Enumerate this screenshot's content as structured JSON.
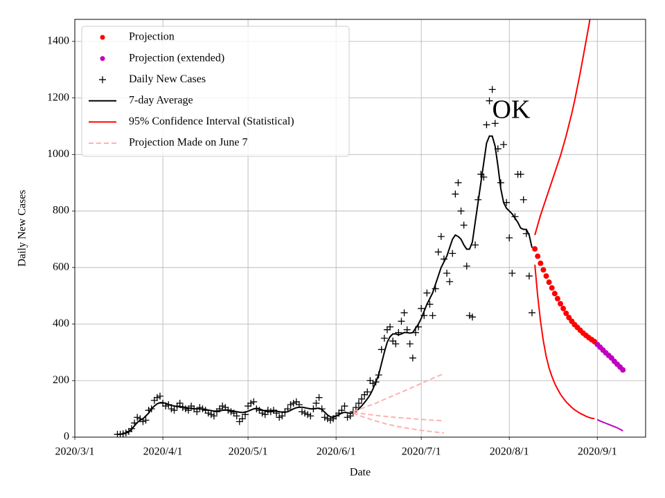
{
  "chart_data": {
    "type": "line",
    "ylabel": "Daily New Cases",
    "xlabel": "Date",
    "annotation": "OK",
    "grid": true,
    "legend": "upper left",
    "xlim": [
      "2020/3/1",
      "2020/9/18"
    ],
    "ylim": [
      0,
      1478
    ],
    "xticks": [
      "2020/3/1",
      "2020/4/1",
      "2020/5/1",
      "2020/6/1",
      "2020/7/1",
      "2020/8/1",
      "2020/9/1"
    ],
    "yticks": [
      0,
      200,
      400,
      600,
      800,
      1000,
      1200,
      1400
    ],
    "x": [
      "2020/3/16",
      "2020/3/17",
      "2020/3/18",
      "2020/3/19",
      "2020/3/20",
      "2020/3/21",
      "2020/3/22",
      "2020/3/23",
      "2020/3/24",
      "2020/3/25",
      "2020/3/26",
      "2020/3/27",
      "2020/3/28",
      "2020/3/29",
      "2020/3/30",
      "2020/3/31",
      "2020/4/1",
      "2020/4/2",
      "2020/4/3",
      "2020/4/4",
      "2020/4/5",
      "2020/4/6",
      "2020/4/7",
      "2020/4/8",
      "2020/4/9",
      "2020/4/10",
      "2020/4/11",
      "2020/4/12",
      "2020/4/13",
      "2020/4/14",
      "2020/4/15",
      "2020/4/16",
      "2020/4/17",
      "2020/4/18",
      "2020/4/19",
      "2020/4/20",
      "2020/4/21",
      "2020/4/22",
      "2020/4/23",
      "2020/4/24",
      "2020/4/25",
      "2020/4/26",
      "2020/4/27",
      "2020/4/28",
      "2020/4/29",
      "2020/4/30",
      "2020/5/1",
      "2020/5/2",
      "2020/5/3",
      "2020/5/4",
      "2020/5/5",
      "2020/5/6",
      "2020/5/7",
      "2020/5/8",
      "2020/5/9",
      "2020/5/10",
      "2020/5/11",
      "2020/5/12",
      "2020/5/13",
      "2020/5/14",
      "2020/5/15",
      "2020/5/16",
      "2020/5/17",
      "2020/5/18",
      "2020/5/19",
      "2020/5/20",
      "2020/5/21",
      "2020/5/22",
      "2020/5/23",
      "2020/5/24",
      "2020/5/25",
      "2020/5/26",
      "2020/5/27",
      "2020/5/28",
      "2020/5/29",
      "2020/5/30",
      "2020/5/31",
      "2020/6/1",
      "2020/6/2",
      "2020/6/3",
      "2020/6/4",
      "2020/6/5",
      "2020/6/6",
      "2020/6/7",
      "2020/6/8",
      "2020/6/9",
      "2020/6/10",
      "2020/6/11",
      "2020/6/12",
      "2020/6/13",
      "2020/6/14",
      "2020/6/15",
      "2020/6/16",
      "2020/6/17",
      "2020/6/18",
      "2020/6/19",
      "2020/6/20",
      "2020/6/21",
      "2020/6/22",
      "2020/6/23",
      "2020/6/24",
      "2020/6/25",
      "2020/6/26",
      "2020/6/27",
      "2020/6/28",
      "2020/6/29",
      "2020/6/30",
      "2020/7/1",
      "2020/7/2",
      "2020/7/3",
      "2020/7/4",
      "2020/7/5",
      "2020/7/6",
      "2020/7/7",
      "2020/7/8",
      "2020/7/9",
      "2020/7/10",
      "2020/7/11",
      "2020/7/12",
      "2020/7/13",
      "2020/7/14",
      "2020/7/15",
      "2020/7/16",
      "2020/7/17",
      "2020/7/18",
      "2020/7/19",
      "2020/7/20",
      "2020/7/21",
      "2020/7/22",
      "2020/7/23",
      "2020/7/24",
      "2020/7/25",
      "2020/7/26",
      "2020/7/27",
      "2020/7/28",
      "2020/7/29",
      "2020/7/30",
      "2020/7/31",
      "2020/8/1",
      "2020/8/2",
      "2020/8/3",
      "2020/8/4",
      "2020/8/5",
      "2020/8/6",
      "2020/8/7",
      "2020/8/8",
      "2020/8/9"
    ],
    "series": [
      {
        "name": "Projection",
        "color": "#ff0000",
        "style": "dots",
        "x": [
          "2020/8/10",
          "2020/8/11",
          "2020/8/12",
          "2020/8/13",
          "2020/8/14",
          "2020/8/15",
          "2020/8/16",
          "2020/8/17",
          "2020/8/18",
          "2020/8/19",
          "2020/8/20",
          "2020/8/21",
          "2020/8/22",
          "2020/8/23",
          "2020/8/24",
          "2020/8/25",
          "2020/8/26",
          "2020/8/27",
          "2020/8/28",
          "2020/8/29",
          "2020/8/30",
          "2020/8/31"
        ],
        "values": [
          666,
          640,
          615,
          592,
          570,
          548,
          528,
          508,
          490,
          472,
          455,
          438,
          423,
          410,
          398,
          388,
          378,
          368,
          360,
          352,
          345,
          338
        ]
      },
      {
        "name": "Projection (extended)",
        "color": "#bf00bf",
        "style": "dots",
        "x": [
          "2020/9/1",
          "2020/9/2",
          "2020/9/3",
          "2020/9/4",
          "2020/9/5",
          "2020/9/6",
          "2020/9/7",
          "2020/9/8",
          "2020/9/9",
          "2020/9/10"
        ],
        "values": [
          328,
          318,
          308,
          298,
          289,
          280,
          268,
          258,
          248,
          238
        ]
      },
      {
        "name": "Daily New Cases",
        "color": "#000000",
        "style": "plus",
        "values": [
          10,
          10,
          12,
          15,
          20,
          30,
          50,
          70,
          65,
          55,
          60,
          95,
          100,
          130,
          140,
          145,
          120,
          110,
          115,
          100,
          95,
          110,
          120,
          105,
          100,
          95,
          110,
          100,
          90,
          105,
          100,
          95,
          85,
          80,
          75,
          90,
          100,
          110,
          105,
          95,
          90,
          85,
          75,
          55,
          65,
          80,
          110,
          120,
          125,
          100,
          95,
          85,
          80,
          95,
          90,
          95,
          85,
          70,
          75,
          90,
          100,
          115,
          120,
          125,
          115,
          90,
          85,
          80,
          75,
          100,
          120,
          140,
          100,
          70,
          65,
          60,
          65,
          75,
          85,
          95,
          110,
          70,
          75,
          90,
          105,
          120,
          135,
          150,
          160,
          200,
          190,
          195,
          220,
          310,
          350,
          380,
          390,
          340,
          330,
          370,
          410,
          440,
          380,
          330,
          280,
          370,
          390,
          455,
          430,
          510,
          470,
          430,
          525,
          655,
          710,
          630,
          580,
          550,
          650,
          860,
          900,
          800,
          750,
          605,
          430,
          425,
          680,
          840,
          930,
          920,
          1105,
          1190,
          1230,
          1110,
          1020,
          900,
          1035,
          830,
          705,
          580,
          780,
          930,
          930,
          840,
          720,
          570,
          440
        ]
      },
      {
        "name": "7-day Average",
        "color": "#000000",
        "style": "line",
        "values": [
          10,
          10,
          12,
          15,
          20,
          28,
          40,
          52,
          60,
          65,
          75,
          85,
          100,
          110,
          118,
          122,
          122,
          120,
          115,
          112,
          110,
          108,
          108,
          107,
          105,
          103,
          102,
          100,
          100,
          100,
          99,
          98,
          96,
          94,
          92,
          92,
          93,
          95,
          96,
          96,
          94,
          92,
          90,
          88,
          87,
          88,
          92,
          96,
          100,
          102,
          100,
          96,
          92,
          90,
          90,
          92,
          92,
          90,
          88,
          88,
          90,
          95,
          100,
          104,
          106,
          106,
          104,
          102,
          100,
          100,
          102,
          102,
          98,
          88,
          78,
          72,
          70,
          75,
          80,
          85,
          88,
          86,
          84,
          86,
          92,
          100,
          110,
          122,
          135,
          150,
          170,
          195,
          220,
          260,
          300,
          335,
          355,
          365,
          365,
          362,
          365,
          370,
          370,
          368,
          370,
          385,
          400,
          420,
          445,
          470,
          490,
          510,
          540,
          570,
          600,
          620,
          640,
          670,
          700,
          715,
          710,
          700,
          680,
          665,
          665,
          690,
          760,
          830,
          900,
          970,
          1040,
          1065,
          1065,
          1030,
          960,
          880,
          830,
          810,
          800,
          790,
          775,
          760,
          740,
          735,
          735,
          715,
          670
        ]
      },
      {
        "name": "95% Confidence Interval (Statistical)",
        "color": "#ff0000",
        "style": "line",
        "x": [
          "2020/8/10",
          "2020/8/11",
          "2020/8/12",
          "2020/8/13",
          "2020/8/14",
          "2020/8/15",
          "2020/8/16",
          "2020/8/17",
          "2020/8/18",
          "2020/8/19",
          "2020/8/20",
          "2020/8/21",
          "2020/8/22",
          "2020/8/23",
          "2020/8/24",
          "2020/8/25",
          "2020/8/26",
          "2020/8/27",
          "2020/8/28",
          "2020/8/29",
          "2020/8/30"
        ],
        "values": [
          715,
          750,
          785,
          815,
          845,
          875,
          905,
          935,
          965,
          995,
          1030,
          1065,
          1105,
          1145,
          1190,
          1240,
          1290,
          1345,
          1400,
          1455,
          1515
        ]
      },
      {
        "name": "Projection Made on June 7",
        "color": "#ffb0b0",
        "style": "dashed",
        "x": [
          "2020/6/7",
          "2020/6/11",
          "2020/6/15",
          "2020/6/19",
          "2020/6/23",
          "2020/6/27",
          "2020/7/1",
          "2020/7/5",
          "2020/7/9"
        ],
        "values": [
          90,
          105,
          120,
          138,
          155,
          172,
          190,
          208,
          225
        ]
      },
      {
        "color": "#ff0000",
        "style": "line",
        "x": [
          "2020/8/10",
          "2020/8/11",
          "2020/8/12",
          "2020/8/13",
          "2020/8/14",
          "2020/8/15",
          "2020/8/16",
          "2020/8/17",
          "2020/8/18",
          "2020/8/19",
          "2020/8/20",
          "2020/8/21",
          "2020/8/22",
          "2020/8/23",
          "2020/8/24",
          "2020/8/25",
          "2020/8/26",
          "2020/8/27",
          "2020/8/28",
          "2020/8/29",
          "2020/8/30",
          "2020/8/31"
        ],
        "values": [
          610,
          500,
          410,
          340,
          285,
          245,
          215,
          190,
          170,
          152,
          138,
          125,
          115,
          105,
          97,
          90,
          84,
          79,
          74,
          70,
          67,
          65
        ]
      },
      {
        "color": "#bf00bf",
        "style": "line",
        "x": [
          "2020/9/1",
          "2020/9/2",
          "2020/9/3",
          "2020/9/4",
          "2020/9/5",
          "2020/9/6",
          "2020/9/7",
          "2020/9/8",
          "2020/9/9",
          "2020/9/10"
        ],
        "values": [
          62,
          57,
          53,
          49,
          45,
          41,
          37,
          33,
          28,
          22
        ]
      },
      {
        "color": "#ffb0b0",
        "style": "dashed",
        "x": [
          "2020/6/7",
          "2020/6/11",
          "2020/6/15",
          "2020/6/19",
          "2020/6/23",
          "2020/6/27",
          "2020/7/1",
          "2020/7/5",
          "2020/7/9"
        ],
        "values": [
          88,
          82,
          77,
          73,
          69,
          66,
          63,
          60,
          58
        ]
      },
      {
        "color": "#ffb0b0",
        "style": "dashed",
        "x": [
          "2020/6/7",
          "2020/6/11",
          "2020/6/15",
          "2020/6/19",
          "2020/6/23",
          "2020/6/27",
          "2020/7/1",
          "2020/7/5",
          "2020/7/9"
        ],
        "values": [
          85,
          70,
          57,
          46,
          37,
          30,
          24,
          19,
          15
        ]
      }
    ]
  }
}
